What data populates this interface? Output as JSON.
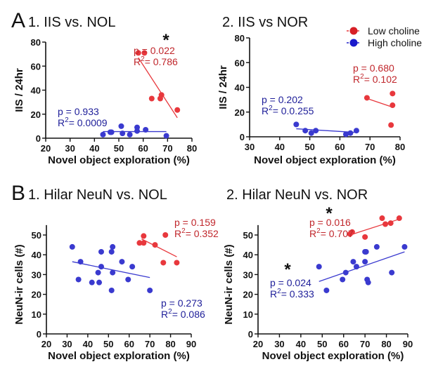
{
  "colors": {
    "low": "#e8383d",
    "low_text": "#c0262b",
    "high": "#3a3acf",
    "high_text": "#20209a",
    "axis": "#111111"
  },
  "legend": {
    "placement": "top-right",
    "items": [
      {
        "label": "Low choline",
        "series": "low"
      },
      {
        "label": "High choline",
        "series": "high"
      }
    ]
  },
  "panel_letters": {
    "A": "A",
    "B": "B"
  },
  "chart_data": [
    {
      "id": "A1",
      "type": "scatter",
      "title": "1. IIS vs. NOL",
      "xlabel": "Novel object exploration (%)",
      "ylabel": "IIS / 24hr",
      "xlim": [
        20,
        80
      ],
      "ylim": [
        0,
        80
      ],
      "xticks": [
        20,
        30,
        40,
        50,
        60,
        70,
        80
      ],
      "yticks": [
        0,
        20,
        40,
        60,
        80
      ],
      "series": [
        {
          "name": "Low choline",
          "key": "low",
          "points": [
            [
              58,
              71
            ],
            [
              60.5,
              71
            ],
            [
              63.5,
              33
            ],
            [
              67,
              33
            ],
            [
              67.5,
              36
            ],
            [
              74,
              23.5
            ]
          ],
          "fit": [
            [
              58,
              67
            ],
            [
              74,
              17
            ]
          ],
          "p": "p = 0.022",
          "r2": "0.786",
          "sig": "*"
        },
        {
          "name": "High choline",
          "key": "high",
          "points": [
            [
              43.5,
              3
            ],
            [
              46.5,
              5
            ],
            [
              47,
              5
            ],
            [
              51,
              10
            ],
            [
              51.5,
              4
            ],
            [
              54.5,
              3
            ],
            [
              57.5,
              9
            ],
            [
              57.5,
              6
            ],
            [
              61,
              7
            ],
            [
              69.5,
              2
            ]
          ],
          "fit": [
            [
              43.5,
              5.5
            ],
            [
              69.5,
              5.5
            ]
          ],
          "p": "p = 0.933",
          "r2": "0.0009",
          "sig": ""
        }
      ]
    },
    {
      "id": "A2",
      "type": "scatter",
      "title": "2. IIS vs NOR",
      "xlabel": "Novel object exploration (%)",
      "ylabel": "IIS / 24hr",
      "xlim": [
        30,
        80
      ],
      "ylim": [
        0,
        80
      ],
      "xticks": [
        30,
        40,
        50,
        60,
        70,
        80
      ],
      "yticks": [
        0,
        20,
        40,
        60,
        80
      ],
      "series": [
        {
          "name": "Low choline",
          "key": "low",
          "points": [
            [
              69,
              31.5
            ],
            [
              77.5,
              35
            ],
            [
              77.5,
              25.5
            ],
            [
              77,
              9.5
            ]
          ],
          "fit": [
            [
              69,
              31
            ],
            [
              77.5,
              24
            ]
          ],
          "p": "p = 0.680",
          "r2": "0.102",
          "sig": ""
        },
        {
          "name": "High choline",
          "key": "high",
          "points": [
            [
              45.5,
              10
            ],
            [
              48.5,
              5
            ],
            [
              50.5,
              3
            ],
            [
              52,
              5
            ],
            [
              62,
              2
            ],
            [
              63.5,
              3
            ],
            [
              65.5,
              5
            ]
          ],
          "fit": [
            [
              45.5,
              6.5
            ],
            [
              65.5,
              3.5
            ]
          ],
          "p": "p = 0.202",
          "r2": "0.0.255",
          "sig": ""
        }
      ]
    },
    {
      "id": "B1",
      "type": "scatter",
      "title": "1. Hilar NeuN vs. NOL",
      "xlabel": "Novel object exploration (%)",
      "ylabel": "NeuN-ir cells (#)",
      "xlim": [
        20,
        90
      ],
      "ylim": [
        0,
        55
      ],
      "xticks": [
        20,
        30,
        40,
        50,
        60,
        70,
        80,
        90
      ],
      "yticks": [
        0,
        10,
        20,
        30,
        40,
        50
      ],
      "series": [
        {
          "name": "Low choline",
          "key": "low",
          "points": [
            [
              65,
              46
            ],
            [
              67,
              49.5
            ],
            [
              67,
              46
            ],
            [
              72.5,
              45
            ],
            [
              77.5,
              50
            ],
            [
              76.5,
              36
            ],
            [
              83,
              36
            ]
          ],
          "fit": [
            [
              66,
              48
            ],
            [
              83,
              39
            ]
          ],
          "p": "p = 0.159",
          "r2": "0.352",
          "sig": ""
        },
        {
          "name": "High choline",
          "key": "high",
          "points": [
            [
              32.5,
              44
            ],
            [
              36.5,
              36.5
            ],
            [
              35.5,
              27.5
            ],
            [
              42,
              26
            ],
            [
              45.5,
              26
            ],
            [
              45,
              31
            ],
            [
              46.5,
              41.5
            ],
            [
              46.5,
              34
            ],
            [
              51.5,
              41.5
            ],
            [
              52,
              44
            ],
            [
              52,
              31
            ],
            [
              51.5,
              22
            ],
            [
              56.5,
              36.5
            ],
            [
              59.5,
              27.5
            ],
            [
              61.5,
              34
            ],
            [
              70,
              22
            ]
          ],
          "fit": [
            [
              32.5,
              36.5
            ],
            [
              70,
              28.5
            ]
          ],
          "p": "p = 0.273",
          "r2": "0.086",
          "sig": ""
        }
      ]
    },
    {
      "id": "B2",
      "type": "scatter",
      "title": "2. Hilar NeuN vs. NOR",
      "xlabel": "Novel object exploration (%)",
      "ylabel": "NeuN-ir cells (#)",
      "xlim": [
        20,
        90
      ],
      "ylim": [
        0,
        55
      ],
      "xticks": [
        20,
        30,
        40,
        50,
        60,
        70,
        80,
        90
      ],
      "yticks": [
        0,
        10,
        20,
        30,
        40,
        50
      ],
      "series": [
        {
          "name": "Low choline",
          "key": "low",
          "points": [
            [
              63,
              50.5
            ],
            [
              64,
              51.5
            ],
            [
              70,
              49
            ],
            [
              78,
              58.5
            ],
            [
              79.5,
              55.5
            ],
            [
              82,
              56
            ],
            [
              86,
              58.5
            ]
          ],
          "fit": [
            [
              63,
              50
            ],
            [
              86,
              58
            ]
          ],
          "p": "p = 0.016",
          "r2": "0.707",
          "sig": "*"
        },
        {
          "name": "High choline",
          "key": "high",
          "points": [
            [
              48.5,
              34
            ],
            [
              52,
              22
            ],
            [
              59.5,
              27.5
            ],
            [
              61,
              31
            ],
            [
              64.5,
              36.5
            ],
            [
              66,
              34
            ],
            [
              70,
              41.5
            ],
            [
              70.5,
              41.5
            ],
            [
              70,
              36.5
            ],
            [
              71,
              27.5
            ],
            [
              71.5,
              26
            ],
            [
              75.5,
              44
            ],
            [
              82.5,
              31
            ],
            [
              88.5,
              44
            ]
          ],
          "fit": [
            [
              48.5,
              26.5
            ],
            [
              88.5,
              41.5
            ]
          ],
          "p": "p = 0.024",
          "r2": "0.333",
          "sig": "*"
        }
      ]
    }
  ]
}
